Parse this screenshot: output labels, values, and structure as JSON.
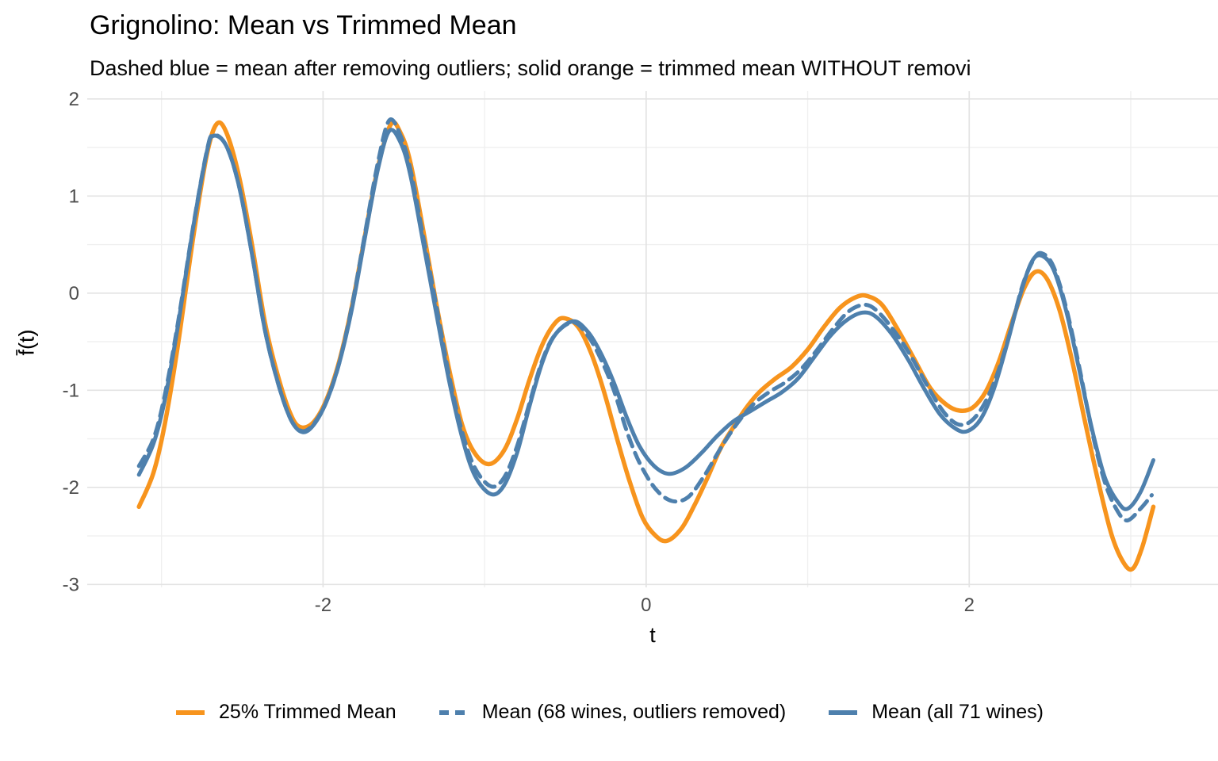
{
  "header": {
    "title": "Grignolino: Mean vs Trimmed Mean",
    "subtitle": "Dashed blue = mean after removing outliers; solid orange = trimmed mean WITHOUT removi"
  },
  "axes": {
    "x_title": "t",
    "y_title": "f̄(t)"
  },
  "legend": {
    "items": [
      {
        "label": "25% Trimmed Mean"
      },
      {
        "label": "Mean (68 wines, outliers removed)"
      },
      {
        "label": "Mean (all 71 wines)"
      }
    ]
  },
  "colors": {
    "orange": "#F7941D",
    "blue": "#4E80AD",
    "grid_major": "#E3E3E3",
    "grid_minor": "#EFEFEF",
    "tick_text": "#4D4D4D"
  },
  "chart_data": {
    "type": "line",
    "title": "Grignolino: Mean vs Trimmed Mean",
    "subtitle": "Dashed blue = mean after removing outliers; solid orange = trimmed mean WITHOUT removi",
    "xlabel": "t",
    "ylabel": "f̄(t)",
    "xlim": [
      -3.46,
      3.54
    ],
    "ylim": [
      -3.03,
      2.08
    ],
    "x_tick_values": [
      -2,
      0,
      2
    ],
    "x_tick_labels": [
      "-2",
      "0",
      "2"
    ],
    "x_minor": [
      -3,
      -1,
      1,
      3
    ],
    "y_tick_values": [
      2,
      1,
      0,
      -1,
      -2,
      -3
    ],
    "y_tick_labels": [
      "2",
      "1",
      "0",
      "-1",
      "-2",
      "-3"
    ],
    "y_minor": [
      1.5,
      0.5,
      -0.5,
      -1.5,
      -2.5
    ],
    "grid": "major+minor",
    "legend_position": "bottom",
    "series": [
      {
        "name": "25% Trimmed Mean",
        "color": "#F7941D",
        "linetype": "solid",
        "width": 5.5,
        "points": [
          [
            -3.14,
            -2.2
          ],
          [
            -3.05,
            -1.85
          ],
          [
            -2.98,
            -1.35
          ],
          [
            -2.9,
            -0.55
          ],
          [
            -2.8,
            0.62
          ],
          [
            -2.72,
            1.42
          ],
          [
            -2.66,
            1.74
          ],
          [
            -2.6,
            1.66
          ],
          [
            -2.52,
            1.2
          ],
          [
            -2.44,
            0.5
          ],
          [
            -2.36,
            -0.3
          ],
          [
            -2.28,
            -0.85
          ],
          [
            -2.2,
            -1.25
          ],
          [
            -2.14,
            -1.38
          ],
          [
            -2.06,
            -1.33
          ],
          [
            -1.98,
            -1.1
          ],
          [
            -1.9,
            -0.7
          ],
          [
            -1.82,
            -0.12
          ],
          [
            -1.74,
            0.6
          ],
          [
            -1.66,
            1.3
          ],
          [
            -1.58,
            1.74
          ],
          [
            -1.52,
            1.65
          ],
          [
            -1.46,
            1.35
          ],
          [
            -1.38,
            0.65
          ],
          [
            -1.3,
            -0.1
          ],
          [
            -1.22,
            -0.78
          ],
          [
            -1.14,
            -1.35
          ],
          [
            -1.06,
            -1.65
          ],
          [
            -0.97,
            -1.76
          ],
          [
            -0.88,
            -1.62
          ],
          [
            -0.8,
            -1.3
          ],
          [
            -0.72,
            -0.88
          ],
          [
            -0.64,
            -0.52
          ],
          [
            -0.56,
            -0.3
          ],
          [
            -0.5,
            -0.26
          ],
          [
            -0.42,
            -0.35
          ],
          [
            -0.34,
            -0.62
          ],
          [
            -0.26,
            -1.02
          ],
          [
            -0.18,
            -1.5
          ],
          [
            -0.1,
            -1.95
          ],
          [
            -0.02,
            -2.32
          ],
          [
            0.06,
            -2.5
          ],
          [
            0.13,
            -2.55
          ],
          [
            0.22,
            -2.42
          ],
          [
            0.3,
            -2.18
          ],
          [
            0.38,
            -1.9
          ],
          [
            0.46,
            -1.6
          ],
          [
            0.54,
            -1.38
          ],
          [
            0.62,
            -1.18
          ],
          [
            0.7,
            -1.02
          ],
          [
            0.8,
            -0.88
          ],
          [
            0.9,
            -0.76
          ],
          [
            1.0,
            -0.58
          ],
          [
            1.1,
            -0.35
          ],
          [
            1.2,
            -0.15
          ],
          [
            1.3,
            -0.04
          ],
          [
            1.37,
            -0.03
          ],
          [
            1.46,
            -0.12
          ],
          [
            1.56,
            -0.38
          ],
          [
            1.66,
            -0.68
          ],
          [
            1.76,
            -0.98
          ],
          [
            1.86,
            -1.15
          ],
          [
            1.94,
            -1.21
          ],
          [
            2.02,
            -1.18
          ],
          [
            2.1,
            -1.02
          ],
          [
            2.18,
            -0.72
          ],
          [
            2.26,
            -0.32
          ],
          [
            2.34,
            0.05
          ],
          [
            2.41,
            0.22
          ],
          [
            2.48,
            0.15
          ],
          [
            2.56,
            -0.18
          ],
          [
            2.64,
            -0.72
          ],
          [
            2.72,
            -1.35
          ],
          [
            2.8,
            -1.95
          ],
          [
            2.88,
            -2.48
          ],
          [
            2.95,
            -2.76
          ],
          [
            3.01,
            -2.84
          ],
          [
            3.07,
            -2.62
          ],
          [
            3.14,
            -2.2
          ]
        ]
      },
      {
        "name": "Mean (68 wines, outliers removed)",
        "color": "#4E80AD",
        "linetype": "dashed",
        "width": 5,
        "points": [
          [
            -3.14,
            -1.78
          ],
          [
            -3.05,
            -1.5
          ],
          [
            -2.98,
            -1.05
          ],
          [
            -2.9,
            -0.32
          ],
          [
            -2.8,
            0.73
          ],
          [
            -2.72,
            1.46
          ],
          [
            -2.68,
            1.63
          ],
          [
            -2.6,
            1.52
          ],
          [
            -2.52,
            1.1
          ],
          [
            -2.44,
            0.4
          ],
          [
            -2.36,
            -0.38
          ],
          [
            -2.28,
            -0.92
          ],
          [
            -2.2,
            -1.3
          ],
          [
            -2.13,
            -1.42
          ],
          [
            -2.06,
            -1.35
          ],
          [
            -1.98,
            -1.12
          ],
          [
            -1.9,
            -0.72
          ],
          [
            -1.82,
            -0.12
          ],
          [
            -1.74,
            0.62
          ],
          [
            -1.66,
            1.35
          ],
          [
            -1.59,
            1.78
          ],
          [
            -1.52,
            1.62
          ],
          [
            -1.46,
            1.28
          ],
          [
            -1.38,
            0.58
          ],
          [
            -1.3,
            -0.12
          ],
          [
            -1.22,
            -0.85
          ],
          [
            -1.14,
            -1.42
          ],
          [
            -1.06,
            -1.8
          ],
          [
            -0.96,
            -1.99
          ],
          [
            -0.88,
            -1.9
          ],
          [
            -0.8,
            -1.58
          ],
          [
            -0.72,
            -1.12
          ],
          [
            -0.64,
            -0.68
          ],
          [
            -0.56,
            -0.42
          ],
          [
            -0.45,
            -0.3
          ],
          [
            -0.36,
            -0.44
          ],
          [
            -0.28,
            -0.68
          ],
          [
            -0.2,
            -1.0
          ],
          [
            -0.12,
            -1.42
          ],
          [
            -0.04,
            -1.75
          ],
          [
            0.06,
            -2.02
          ],
          [
            0.16,
            -2.14
          ],
          [
            0.26,
            -2.1
          ],
          [
            0.36,
            -1.88
          ],
          [
            0.46,
            -1.6
          ],
          [
            0.56,
            -1.35
          ],
          [
            0.66,
            -1.15
          ],
          [
            0.76,
            -1.02
          ],
          [
            0.86,
            -0.92
          ],
          [
            0.96,
            -0.78
          ],
          [
            1.06,
            -0.58
          ],
          [
            1.16,
            -0.36
          ],
          [
            1.26,
            -0.18
          ],
          [
            1.36,
            -0.12
          ],
          [
            1.44,
            -0.2
          ],
          [
            1.54,
            -0.4
          ],
          [
            1.64,
            -0.65
          ],
          [
            1.74,
            -0.95
          ],
          [
            1.84,
            -1.22
          ],
          [
            1.93,
            -1.35
          ],
          [
            2.01,
            -1.32
          ],
          [
            2.09,
            -1.15
          ],
          [
            2.17,
            -0.85
          ],
          [
            2.25,
            -0.42
          ],
          [
            2.33,
            0.08
          ],
          [
            2.4,
            0.35
          ],
          [
            2.45,
            0.41
          ],
          [
            2.52,
            0.28
          ],
          [
            2.6,
            -0.15
          ],
          [
            2.68,
            -0.75
          ],
          [
            2.76,
            -1.42
          ],
          [
            2.84,
            -1.95
          ],
          [
            2.92,
            -2.25
          ],
          [
            2.98,
            -2.34
          ],
          [
            3.06,
            -2.22
          ],
          [
            3.13,
            -2.08
          ]
        ]
      },
      {
        "name": "Mean (all 71 wines)",
        "color": "#4E80AD",
        "linetype": "solid",
        "width": 5,
        "points": [
          [
            -3.14,
            -1.87
          ],
          [
            -3.05,
            -1.55
          ],
          [
            -2.98,
            -1.1
          ],
          [
            -2.9,
            -0.35
          ],
          [
            -2.8,
            0.72
          ],
          [
            -2.72,
            1.45
          ],
          [
            -2.68,
            1.62
          ],
          [
            -2.6,
            1.52
          ],
          [
            -2.52,
            1.1
          ],
          [
            -2.44,
            0.4
          ],
          [
            -2.36,
            -0.38
          ],
          [
            -2.28,
            -0.92
          ],
          [
            -2.2,
            -1.3
          ],
          [
            -2.13,
            -1.43
          ],
          [
            -2.06,
            -1.36
          ],
          [
            -1.98,
            -1.12
          ],
          [
            -1.9,
            -0.72
          ],
          [
            -1.82,
            -0.15
          ],
          [
            -1.74,
            0.58
          ],
          [
            -1.66,
            1.28
          ],
          [
            -1.59,
            1.67
          ],
          [
            -1.52,
            1.55
          ],
          [
            -1.46,
            1.22
          ],
          [
            -1.38,
            0.52
          ],
          [
            -1.3,
            -0.2
          ],
          [
            -1.22,
            -0.9
          ],
          [
            -1.14,
            -1.48
          ],
          [
            -1.06,
            -1.88
          ],
          [
            -0.96,
            -2.07
          ],
          [
            -0.88,
            -1.98
          ],
          [
            -0.8,
            -1.65
          ],
          [
            -0.72,
            -1.15
          ],
          [
            -0.64,
            -0.7
          ],
          [
            -0.56,
            -0.42
          ],
          [
            -0.45,
            -0.29
          ],
          [
            -0.36,
            -0.4
          ],
          [
            -0.28,
            -0.62
          ],
          [
            -0.2,
            -0.92
          ],
          [
            -0.12,
            -1.28
          ],
          [
            -0.04,
            -1.58
          ],
          [
            0.05,
            -1.78
          ],
          [
            0.14,
            -1.86
          ],
          [
            0.24,
            -1.8
          ],
          [
            0.34,
            -1.65
          ],
          [
            0.44,
            -1.47
          ],
          [
            0.54,
            -1.32
          ],
          [
            0.64,
            -1.22
          ],
          [
            0.74,
            -1.12
          ],
          [
            0.84,
            -1.02
          ],
          [
            0.94,
            -0.88
          ],
          [
            1.04,
            -0.66
          ],
          [
            1.14,
            -0.44
          ],
          [
            1.24,
            -0.28
          ],
          [
            1.34,
            -0.2
          ],
          [
            1.42,
            -0.24
          ],
          [
            1.52,
            -0.42
          ],
          [
            1.62,
            -0.68
          ],
          [
            1.72,
            -0.98
          ],
          [
            1.82,
            -1.25
          ],
          [
            1.92,
            -1.4
          ],
          [
            1.99,
            -1.42
          ],
          [
            2.07,
            -1.3
          ],
          [
            2.15,
            -1.0
          ],
          [
            2.23,
            -0.55
          ],
          [
            2.31,
            -0.05
          ],
          [
            2.38,
            0.3
          ],
          [
            2.44,
            0.39
          ],
          [
            2.52,
            0.25
          ],
          [
            2.6,
            -0.18
          ],
          [
            2.68,
            -0.78
          ],
          [
            2.76,
            -1.4
          ],
          [
            2.84,
            -1.9
          ],
          [
            2.92,
            -2.15
          ],
          [
            2.98,
            -2.22
          ],
          [
            3.06,
            -2.05
          ],
          [
            3.14,
            -1.72
          ]
        ]
      }
    ]
  }
}
